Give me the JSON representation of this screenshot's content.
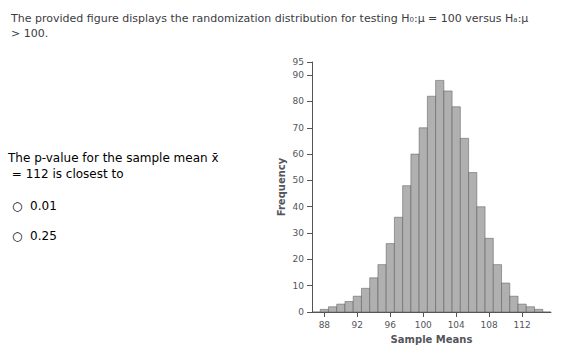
{
  "chart_data": {
    "type": "histogram",
    "title": "The provided figure displays the randomization distribution for testing H₀:μ = 100 versus Hₐ:μ > 100.",
    "x_label": "Sample Means",
    "y_label": "Frequency",
    "bins": [
      86.5,
      87.5,
      88.5,
      89.5,
      90.5,
      91.5,
      92.5,
      93.5,
      94.5,
      95.5,
      96.5,
      97.5,
      98.5,
      99.5,
      100.5,
      101.5,
      102.5,
      103.5,
      104.5,
      105.5,
      106.5,
      107.5,
      108.5,
      109.5,
      110.5,
      111.5,
      112.5,
      113.5,
      114.5,
      115.5
    ],
    "values": [
      0,
      1,
      2,
      3,
      4,
      6,
      9,
      13,
      18,
      26,
      36,
      48,
      60,
      70,
      82,
      88,
      84,
      78,
      66,
      53,
      40,
      28,
      18,
      11,
      6,
      3,
      2,
      1,
      0
    ],
    "color": "#b0b0b0",
    "xlim": [
      86.5,
      115.5
    ],
    "xticks": [
      88,
      92,
      96,
      100,
      104,
      108,
      112
    ],
    "ylim": [
      0,
      95
    ],
    "yticks": [
      0,
      10,
      20,
      30,
      40,
      50,
      60,
      70,
      80,
      90
    ],
    "grid": false,
    "annotations": [
      "The p-value for the sample mean x̄ = 112 is closest to",
      "○  0.01",
      "○  0.25"
    ]
  }
}
